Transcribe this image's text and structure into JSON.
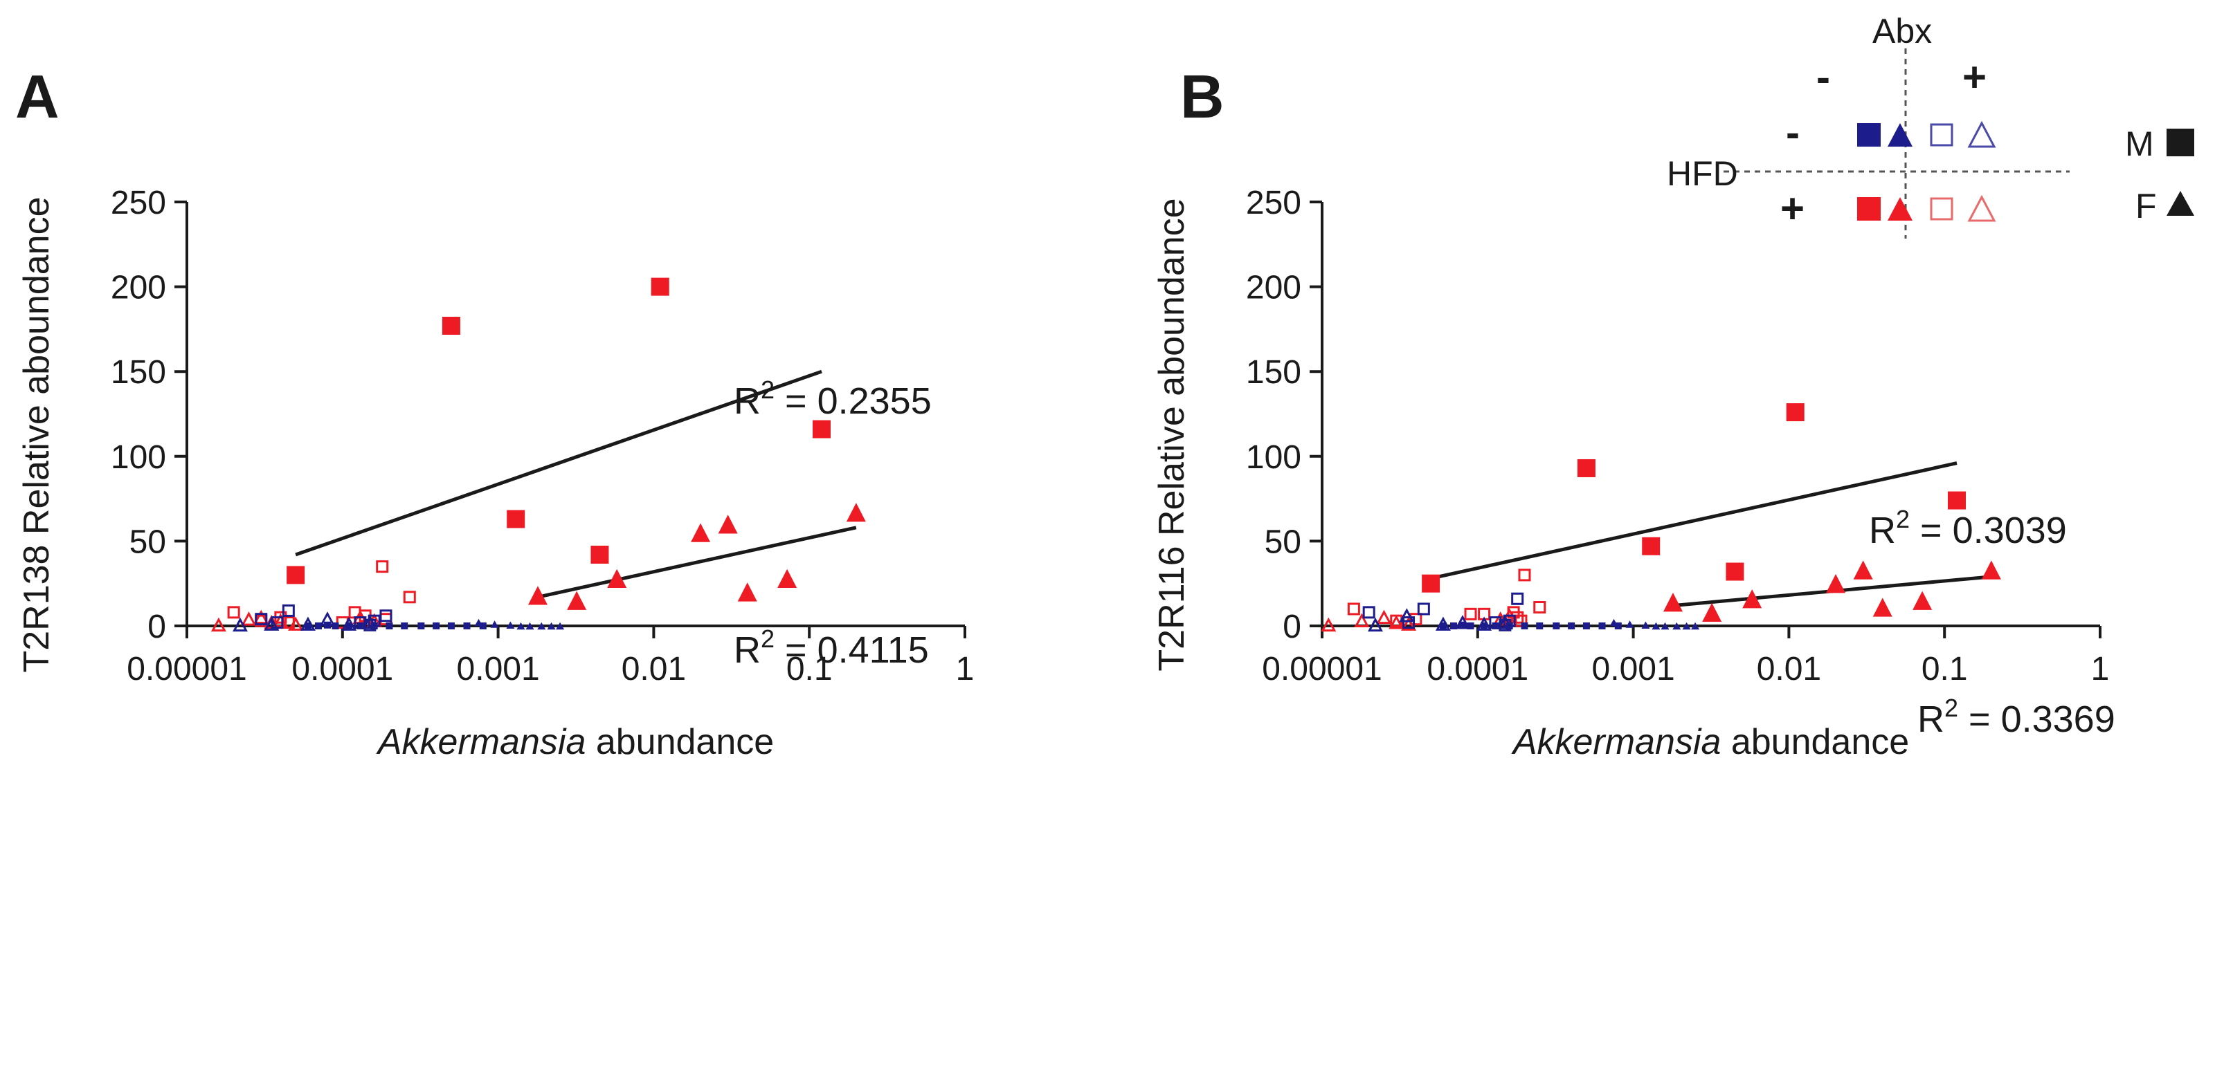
{
  "colors": {
    "red": "#ee1b24",
    "blue": "#1c1c8c",
    "black": "#1a1a1a",
    "legend_red_open": "#e86b6b",
    "legend_blue_open": "#4a4aa8"
  },
  "chart_data": [
    {
      "panel": "A",
      "type": "scatter",
      "x_scale": "log",
      "xlim": [
        1e-05,
        1
      ],
      "ylim": [
        0,
        250
      ],
      "xticks": [
        "0.00001",
        "0.0001",
        "0.001",
        "0.01",
        "0.1",
        "1"
      ],
      "yticks": [
        "0",
        "50",
        "100",
        "150",
        "200",
        "250"
      ],
      "xlabel_italic": "Akkermansia",
      "xlabel_rest": " abundance",
      "ylabel": "T2R138 Relative aboundance",
      "fits": [
        {
          "label_prefix": "R",
          "label_sup": "2",
          "label_value": " = 0.2355",
          "x": [
            5e-05,
            0.12
          ],
          "y": [
            42,
            150
          ]
        },
        {
          "label_prefix": "R",
          "label_sup": "2",
          "label_value": " = 0.4115",
          "x": [
            0.0018,
            0.2
          ],
          "y": [
            17,
            58
          ]
        }
      ],
      "series": [
        {
          "name": "HFD+ Abx- M",
          "marker": "square",
          "fill": "filled",
          "color": "red",
          "points": [
            [
              5e-05,
              30
            ],
            [
              0.0005,
              177
            ],
            [
              0.0013,
              63
            ],
            [
              0.0045,
              42
            ],
            [
              0.011,
              200
            ],
            [
              0.12,
              116
            ]
          ]
        },
        {
          "name": "HFD+ Abx- F",
          "marker": "triangle",
          "fill": "filled",
          "color": "red",
          "points": [
            [
              0.0018,
              18
            ],
            [
              0.0032,
              15
            ],
            [
              0.0058,
              28
            ],
            [
              0.02,
              55
            ],
            [
              0.03,
              60
            ],
            [
              0.04,
              20
            ],
            [
              0.072,
              28
            ],
            [
              0.2,
              67
            ]
          ]
        },
        {
          "name": "HFD+ Abx+ M",
          "marker": "square",
          "fill": "open",
          "color": "red",
          "points": [
            [
              2e-05,
              8
            ],
            [
              3e-05,
              3
            ],
            [
              4.5e-05,
              2
            ],
            [
              0.00012,
              8
            ],
            [
              0.00014,
              6
            ],
            [
              0.00018,
              35
            ],
            [
              0.00019,
              4
            ],
            [
              0.00027,
              17
            ],
            [
              0.0001,
              2
            ],
            [
              4e-05,
              5
            ]
          ]
        },
        {
          "name": "HFD+ Abx+ F",
          "marker": "triangle",
          "fill": "open",
          "color": "red",
          "points": [
            [
              1.6e-05,
              0.5
            ],
            [
              2.5e-05,
              4
            ],
            [
              3e-05,
              5
            ],
            [
              3.5e-05,
              2
            ],
            [
              5e-05,
              1
            ],
            [
              0.00013,
              5
            ],
            [
              0.00016,
              3
            ],
            [
              4e-05,
              3
            ]
          ]
        },
        {
          "name": "HFD- Abx- M",
          "marker": "square",
          "fill": "filled",
          "color": "blue",
          "points": [
            [
              6e-05,
              0
            ],
            [
              7e-05,
              0
            ],
            [
              8e-05,
              0.5
            ],
            [
              9e-05,
              0
            ],
            [
              0.00011,
              0
            ],
            [
              0.00013,
              0
            ],
            [
              0.00016,
              0
            ],
            [
              0.0002,
              0
            ],
            [
              0.00025,
              0
            ],
            [
              0.00032,
              0
            ],
            [
              0.0004,
              0
            ],
            [
              0.0005,
              0
            ],
            [
              0.00063,
              0
            ],
            [
              0.0008,
              0
            ]
          ]
        },
        {
          "name": "HFD- Abx- F",
          "marker": "triangle",
          "fill": "filled",
          "color": "blue",
          "points": [
            [
              0.00075,
              2
            ],
            [
              0.00095,
              1
            ],
            [
              0.0012,
              0.5
            ],
            [
              0.0014,
              0
            ],
            [
              0.0016,
              0
            ],
            [
              0.0019,
              0
            ],
            [
              0.0022,
              0
            ],
            [
              0.0025,
              0
            ]
          ]
        },
        {
          "name": "HFD- Abx+ M",
          "marker": "square",
          "fill": "open",
          "color": "blue",
          "points": [
            [
              4.5e-05,
              9
            ],
            [
              3e-05,
              4
            ],
            [
              3.8e-05,
              2
            ],
            [
              0.00013,
              2
            ],
            [
              0.00015,
              0.5
            ],
            [
              0.00019,
              6
            ],
            [
              0.00016,
              3
            ]
          ]
        },
        {
          "name": "HFD- Abx+ F",
          "marker": "triangle",
          "fill": "open",
          "color": "blue",
          "points": [
            [
              3.5e-05,
              1
            ],
            [
              6e-05,
              1
            ],
            [
              8e-05,
              4
            ],
            [
              2.2e-05,
              0.5
            ],
            [
              0.00011,
              1
            ],
            [
              0.00015,
              2
            ]
          ]
        }
      ]
    },
    {
      "panel": "B",
      "type": "scatter",
      "x_scale": "log",
      "xlim": [
        1e-05,
        1
      ],
      "ylim": [
        0,
        250
      ],
      "xticks": [
        "0.00001",
        "0.0001",
        "0.001",
        "0.01",
        "0.1",
        "1"
      ],
      "yticks": [
        "0",
        "50",
        "100",
        "150",
        "200",
        "250"
      ],
      "xlabel_italic": "Akkermansia",
      "xlabel_rest": " abundance",
      "ylabel": "T2R116 Relative aboundance",
      "fits": [
        {
          "label_prefix": "R",
          "label_sup": "2",
          "label_value": " = 0.3039",
          "x": [
            5e-05,
            0.12
          ],
          "y": [
            28,
            96
          ]
        },
        {
          "label_prefix": "R",
          "label_sup": "2",
          "label_value": " = 0.3369",
          "x": [
            0.0018,
            0.2
          ],
          "y": [
            12,
            29
          ]
        }
      ],
      "series": [
        {
          "name": "HFD+ Abx- M",
          "marker": "square",
          "fill": "filled",
          "color": "red",
          "points": [
            [
              5e-05,
              25
            ],
            [
              0.0005,
              93
            ],
            [
              0.0013,
              47
            ],
            [
              0.0045,
              32
            ],
            [
              0.011,
              126
            ],
            [
              0.12,
              74
            ]
          ]
        },
        {
          "name": "HFD+ Abx- F",
          "marker": "triangle",
          "fill": "filled",
          "color": "red",
          "points": [
            [
              0.0018,
              14
            ],
            [
              0.0032,
              8
            ],
            [
              0.0058,
              16
            ],
            [
              0.02,
              25
            ],
            [
              0.03,
              33
            ],
            [
              0.04,
              11
            ],
            [
              0.072,
              15
            ],
            [
              0.2,
              33
            ]
          ]
        },
        {
          "name": "HFD+ Abx+ M",
          "marker": "square",
          "fill": "open",
          "color": "red",
          "points": [
            [
              1.6e-05,
              10
            ],
            [
              3e-05,
              3
            ],
            [
              4e-05,
              4
            ],
            [
              9e-05,
              7
            ],
            [
              0.00011,
              7
            ],
            [
              0.00018,
              5
            ],
            [
              0.0002,
              30
            ],
            [
              0.00019,
              3
            ],
            [
              0.00025,
              11
            ],
            [
              0.00017,
              8
            ]
          ]
        },
        {
          "name": "HFD+ Abx+ F",
          "marker": "triangle",
          "fill": "open",
          "color": "red",
          "points": [
            [
              1.1e-05,
              0.5
            ],
            [
              1.8e-05,
              3
            ],
            [
              2.5e-05,
              5
            ],
            [
              3e-05,
              2
            ],
            [
              3.6e-05,
              1
            ],
            [
              0.00014,
              4
            ],
            [
              0.00016,
              6
            ]
          ]
        },
        {
          "name": "HFD- Abx- M",
          "marker": "square",
          "fill": "filled",
          "color": "blue",
          "points": [
            [
              6e-05,
              0
            ],
            [
              7e-05,
              0
            ],
            [
              8e-05,
              0.5
            ],
            [
              9e-05,
              0
            ],
            [
              0.00011,
              0
            ],
            [
              0.00013,
              0
            ],
            [
              0.00016,
              0
            ],
            [
              0.0002,
              0
            ],
            [
              0.00025,
              0
            ],
            [
              0.00032,
              0
            ],
            [
              0.0004,
              0
            ],
            [
              0.0005,
              0
            ],
            [
              0.00063,
              0
            ],
            [
              0.0008,
              0
            ]
          ]
        },
        {
          "name": "HFD- Abx- F",
          "marker": "triangle",
          "fill": "filled",
          "color": "blue",
          "points": [
            [
              0.00075,
              2
            ],
            [
              0.00095,
              1
            ],
            [
              0.0012,
              0.5
            ],
            [
              0.0014,
              0
            ],
            [
              0.0016,
              0
            ],
            [
              0.0019,
              0
            ],
            [
              0.0022,
              0
            ],
            [
              0.0025,
              0
            ]
          ]
        },
        {
          "name": "HFD- Abx+ M",
          "marker": "square",
          "fill": "open",
          "color": "blue",
          "points": [
            [
              4.5e-05,
              10
            ],
            [
              2e-05,
              8
            ],
            [
              3.6e-05,
              2
            ],
            [
              0.00013,
              2
            ],
            [
              0.00015,
              0.5
            ],
            [
              0.00018,
              16
            ],
            [
              0.00016,
              3
            ]
          ]
        },
        {
          "name": "HFD- Abx+ F",
          "marker": "triangle",
          "fill": "open",
          "color": "blue",
          "points": [
            [
              3.5e-05,
              6
            ],
            [
              6e-05,
              1
            ],
            [
              8e-05,
              2
            ],
            [
              2.2e-05,
              0.5
            ],
            [
              0.00011,
              1
            ],
            [
              0.00015,
              2
            ]
          ]
        }
      ]
    }
  ],
  "legend": {
    "abx_title": "Abx",
    "hfd_title": "HFD",
    "minus": "-",
    "plus": "+",
    "sex_m": "M",
    "sex_f": "F"
  }
}
